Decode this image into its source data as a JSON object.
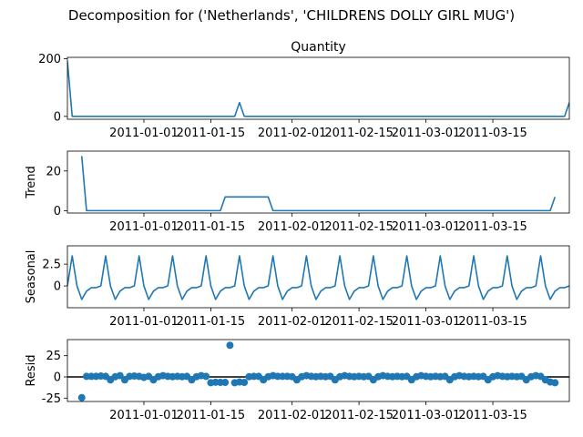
{
  "figure": {
    "suptitle": "Decomposition for ('Netherlands', 'CHILDRENS DOLLY GIRL MUG')",
    "line_color": "#1f77b4",
    "axis_color": "#000000"
  },
  "chart_data": [
    {
      "type": "line",
      "title": "Quantity",
      "xlabel": "",
      "ylabel": "",
      "x_start": "2010-12-16",
      "x_end": "2011-03-31",
      "xticks": [
        "2011-01-01",
        "2011-01-15",
        "2011-02-01",
        "2011-02-15",
        "2011-03-01",
        "2011-03-15"
      ],
      "yticks": [
        0,
        200
      ],
      "ylim": [
        -10,
        205
      ],
      "grid": false,
      "series": [
        {
          "dates": [
            "2010-12-16",
            "2010-12-17",
            "2011-01-20",
            "2011-01-21",
            "2011-01-22",
            "2011-03-30",
            "2011-03-31"
          ],
          "values": [
            192,
            0,
            0,
            48,
            0,
            0,
            48
          ]
        }
      ]
    },
    {
      "type": "line",
      "title": "",
      "xlabel": "",
      "ylabel": "Trend",
      "x_start": "2010-12-16",
      "x_end": "2011-03-31",
      "xticks": [
        "2011-01-01",
        "2011-01-15",
        "2011-02-01",
        "2011-02-15",
        "2011-03-01",
        "2011-03-15"
      ],
      "yticks": [
        0,
        20
      ],
      "ylim": [
        -1.2,
        30
      ],
      "grid": false,
      "series": [
        {
          "dates": [
            "2010-12-19",
            "2010-12-20",
            "2011-01-17",
            "2011-01-18",
            "2011-01-27",
            "2011-01-28",
            "2011-03-27",
            "2011-03-28"
          ],
          "values": [
            27.5,
            0,
            0,
            6.9,
            6.9,
            0,
            0,
            6.9
          ]
        }
      ]
    },
    {
      "type": "line",
      "title": "",
      "xlabel": "",
      "ylabel": "Seasonal",
      "x_start": "2010-12-16",
      "x_end": "2011-03-31",
      "xticks": [
        "2011-01-01",
        "2011-01-15",
        "2011-02-01",
        "2011-02-15",
        "2011-03-01",
        "2011-03-15"
      ],
      "yticks": [
        0.0,
        2.5
      ],
      "ylim": [
        -2.5,
        4.6
      ],
      "grid": false,
      "period_days": 7,
      "series": [
        {
          "start_date": "2010-12-16",
          "pattern": [
            0.0,
            3.45,
            0.0,
            -1.55,
            -0.6,
            -0.2,
            -0.2
          ],
          "days": 106
        }
      ]
    },
    {
      "type": "scatter",
      "title": "",
      "xlabel": "",
      "ylabel": "Resid",
      "x_start": "2010-12-16",
      "x_end": "2011-03-31",
      "xticks": [
        "2011-01-01",
        "2011-01-15",
        "2011-02-01",
        "2011-02-15",
        "2011-03-01",
        "2011-03-15"
      ],
      "yticks": [
        -25,
        0,
        25
      ],
      "ylim": [
        -29,
        44
      ],
      "grid": false,
      "zero_line": true,
      "series": [
        {
          "dates": [
            "2010-12-19",
            "2010-12-20",
            "2010-12-21",
            "2010-12-22",
            "2010-12-23",
            "2010-12-24",
            "2010-12-25",
            "2010-12-26",
            "2010-12-27",
            "2010-12-28",
            "2010-12-29",
            "2010-12-30",
            "2010-12-31",
            "2011-01-01",
            "2011-01-02",
            "2011-01-03",
            "2011-01-04",
            "2011-01-05",
            "2011-01-06",
            "2011-01-07",
            "2011-01-08",
            "2011-01-09",
            "2011-01-10",
            "2011-01-11",
            "2011-01-12",
            "2011-01-13",
            "2011-01-14",
            "2011-01-15",
            "2011-01-16",
            "2011-01-17",
            "2011-01-18",
            "2011-01-19",
            "2011-01-20",
            "2011-01-21",
            "2011-01-22",
            "2011-01-23",
            "2011-01-24",
            "2011-01-25",
            "2011-01-26",
            "2011-01-27",
            "2011-01-28",
            "2011-01-29",
            "2011-01-30",
            "2011-01-31",
            "2011-02-01",
            "2011-02-02",
            "2011-02-03",
            "2011-02-04",
            "2011-02-05",
            "2011-02-06",
            "2011-02-07",
            "2011-02-08",
            "2011-02-09",
            "2011-02-10",
            "2011-02-11",
            "2011-02-12",
            "2011-02-13",
            "2011-02-14",
            "2011-02-15",
            "2011-02-16",
            "2011-02-17",
            "2011-02-18",
            "2011-02-19",
            "2011-02-20",
            "2011-02-21",
            "2011-02-22",
            "2011-02-23",
            "2011-02-24",
            "2011-02-25",
            "2011-02-26",
            "2011-02-27",
            "2011-02-28",
            "2011-03-01",
            "2011-03-02",
            "2011-03-03",
            "2011-03-04",
            "2011-03-05",
            "2011-03-06",
            "2011-03-07",
            "2011-03-08",
            "2011-03-09",
            "2011-03-10",
            "2011-03-11",
            "2011-03-12",
            "2011-03-13",
            "2011-03-14",
            "2011-03-15",
            "2011-03-16",
            "2011-03-17",
            "2011-03-18",
            "2011-03-19",
            "2011-03-20",
            "2011-03-21",
            "2011-03-22",
            "2011-03-23",
            "2011-03-24",
            "2011-03-25",
            "2011-03-26",
            "2011-03-27",
            "2011-03-28"
          ],
          "values": [
            -24.4,
            0.6,
            0.6,
            0.6,
            1.0,
            0.6,
            -3.5,
            0.2,
            1.5,
            -3.5,
            0.6,
            1.0,
            0.6,
            -0.6,
            0.6,
            -3.5,
            0.2,
            1.5,
            0.6,
            0.2,
            0.6,
            0.2,
            0.6,
            -3.5,
            0.2,
            1.5,
            0.6,
            -6.9,
            -6.3,
            -6.5,
            -6.5,
            37.3,
            -6.9,
            -6.0,
            -6.5,
            0.2,
            0.6,
            0.6,
            -3.5,
            0.2,
            1.5,
            0.6,
            0.6,
            0.6,
            0.2,
            -3.5,
            0.2,
            1.5,
            0.6,
            0.2,
            0.6,
            0.2,
            0.6,
            -3.5,
            0.2,
            1.5,
            0.6,
            0.2,
            0.6,
            0.2,
            0.6,
            -3.5,
            0.2,
            1.5,
            0.6,
            0.2,
            0.6,
            0.2,
            0.6,
            -3.5,
            0.2,
            1.5,
            0.6,
            0.2,
            0.6,
            0.2,
            0.6,
            -3.5,
            0.2,
            1.5,
            0.6,
            0.2,
            0.6,
            0.2,
            0.6,
            -3.5,
            0.2,
            1.5,
            0.6,
            0.2,
            0.6,
            0.2,
            0.6,
            -3.5,
            0.2,
            1.5,
            0.6,
            -3.5,
            -6.0,
            -6.9
          ]
        }
      ]
    }
  ]
}
